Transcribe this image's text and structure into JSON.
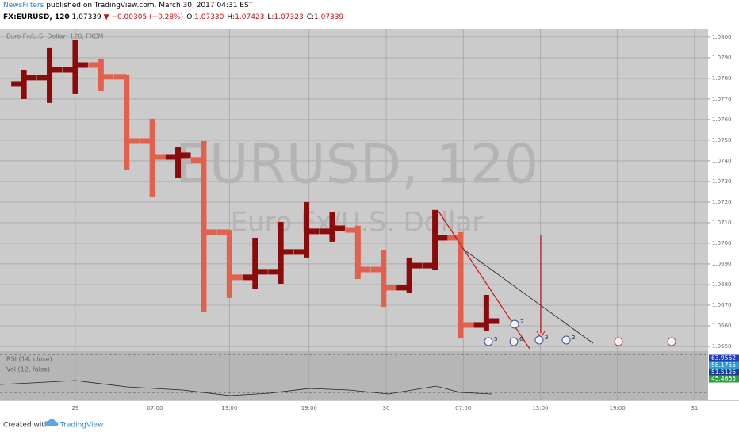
{
  "header": {
    "author": "NewsFilters",
    "published": "published on TradingView.com, March 30, 2017 04:31 EST",
    "symbol": "FX:EURUSD, 120",
    "last": "1.07339",
    "change": "▼ −0.00305 (−0.28%)",
    "ohlc": [
      {
        "k": "O:",
        "v": "1.07330"
      },
      {
        "k": "H:",
        "v": "1.07423"
      },
      {
        "k": "L:",
        "v": "1.07323"
      },
      {
        "k": "C:",
        "v": "1.07339"
      }
    ]
  },
  "chart_data": {
    "type": "ohlc",
    "label": "Euro Fx/U.S. Dollar, 120, FXCM",
    "watermark": "EURUSD, 120",
    "watermark_subtitle": "Euro Fx/U.S. Dollar",
    "up_color": "#8b0a0a",
    "down_color": "#e0624e",
    "grid": true,
    "open": [
      1.07773,
      1.07804,
      1.07842,
      1.07865,
      1.07808,
      1.07496,
      1.07419,
      1.07404,
      1.07054,
      1.06835,
      1.06862,
      1.06958,
      1.07058,
      1.07065,
      1.06873,
      1.06785,
      1.06892,
      1.07027,
      1.06604
    ],
    "high": [
      1.07842,
      1.0795,
      1.07988,
      1.07892,
      1.07815,
      1.07604,
      1.07469,
      1.07496,
      1.07065,
      1.07027,
      1.07104,
      1.072,
      1.0715,
      1.07085,
      1.06969,
      1.06931,
      1.07162,
      1.07054,
      1.0675
    ],
    "low": [
      1.077,
      1.07681,
      1.07727,
      1.07738,
      1.07354,
      1.07227,
      1.07315,
      1.06669,
      1.06735,
      1.06777,
      1.06804,
      1.06931,
      1.07008,
      1.06827,
      1.06692,
      1.06758,
      1.06873,
      1.06538,
      1.06577
    ],
    "close": [
      1.07804,
      1.07842,
      1.07865,
      1.07808,
      1.07496,
      1.07419,
      1.07427,
      1.07054,
      1.06835,
      1.06862,
      1.06958,
      1.07058,
      1.07073,
      1.06873,
      1.06785,
      1.06892,
      1.07027,
      1.06604,
      1.06623
    ],
    "xlim": [
      -0.93,
      26.63
    ],
    "xticks": [
      {
        "value": 2,
        "label": "29"
      },
      {
        "value": 5.1,
        "label": "07:00"
      },
      {
        "value": 8,
        "label": "13:00"
      },
      {
        "value": 11.1,
        "label": "19:00"
      },
      {
        "value": 14.1,
        "label": "30"
      },
      {
        "value": 17.1,
        "label": "07:00"
      },
      {
        "value": 20.1,
        "label": "13:00"
      },
      {
        "value": 23.1,
        "label": "19:00"
      },
      {
        "value": 26.1,
        "label": "31"
      }
    ],
    "ylim": [
      1.06477,
      1.08038
    ],
    "yticks": [
      {
        "value": 1.08,
        "label": "1.0800"
      },
      {
        "value": 1.079,
        "label": "1.0790"
      },
      {
        "value": 1.078,
        "label": "1.0780"
      },
      {
        "value": 1.077,
        "label": "1.0770"
      },
      {
        "value": 1.076,
        "label": "1.0760"
      },
      {
        "value": 1.075,
        "label": "1.0750"
      },
      {
        "value": 1.074,
        "label": "1.0740"
      },
      {
        "value": 1.073,
        "label": "1.0730"
      },
      {
        "value": 1.072,
        "label": "1.0720"
      },
      {
        "value": 1.071,
        "label": "1.0710"
      },
      {
        "value": 1.07,
        "label": "1.0700"
      },
      {
        "value": 1.069,
        "label": "1.0690"
      },
      {
        "value": 1.068,
        "label": "1.0680"
      },
      {
        "value": 1.067,
        "label": "1.0670"
      },
      {
        "value": 1.066,
        "label": "1.0660"
      },
      {
        "value": 1.065,
        "label": "1.0650"
      }
    ]
  },
  "events": [
    "5",
    "2",
    "6",
    "3",
    "2"
  ],
  "indicators": {
    "rsi": "RSI (14, close)",
    "vol": "Vol (12, false)",
    "values": [
      {
        "label": "63.9562",
        "color": "#1f3fbf"
      },
      {
        "label": "58.1755",
        "color": "#2a9fd6"
      },
      {
        "label": "51.5126",
        "color": "#1c3f9a"
      },
      {
        "label": "45.4665",
        "color": "#2e9e3e"
      }
    ]
  },
  "footer": {
    "created": "Created with",
    "brand": "TradingView"
  }
}
